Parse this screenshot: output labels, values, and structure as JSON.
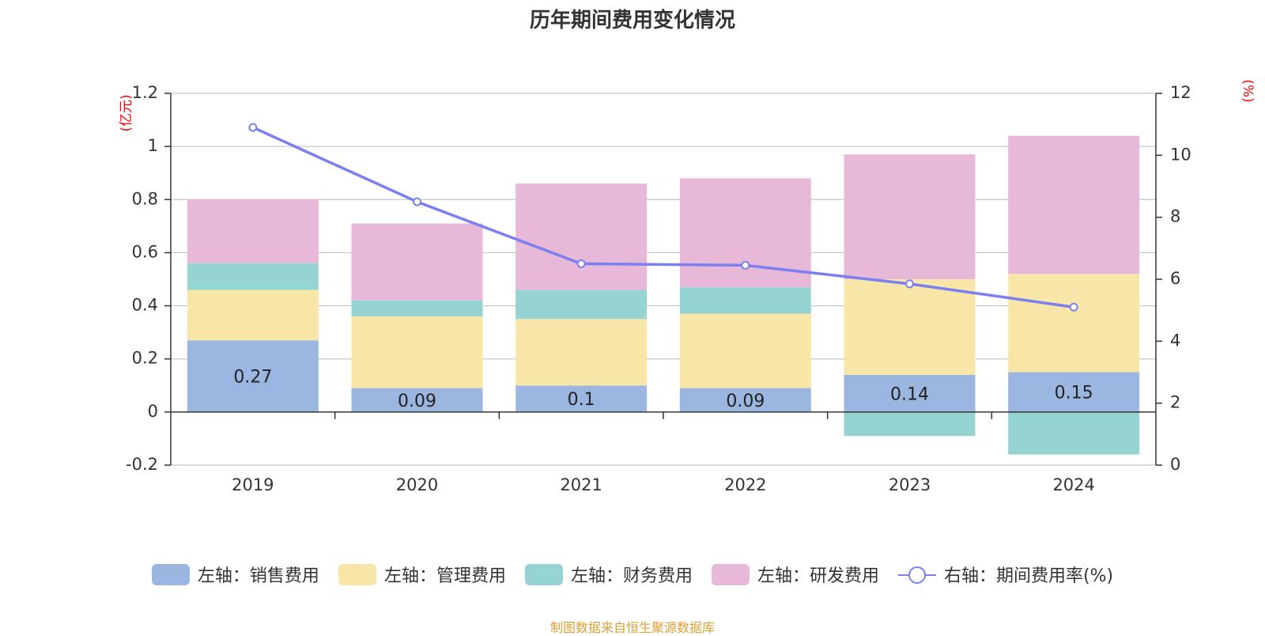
{
  "chart_data": {
    "type": "bar",
    "stacked": true,
    "title": "历年期间费用变化情况",
    "categories": [
      "2019",
      "2020",
      "2021",
      "2022",
      "2023",
      "2024"
    ],
    "left_axis": {
      "unit": "(亿元)",
      "ylim": [
        -0.2,
        1.2
      ],
      "ticks": [
        "-0.2",
        "0",
        "0.2",
        "0.4",
        "0.6",
        "0.8",
        "1",
        "1.2"
      ]
    },
    "right_axis": {
      "unit": "(%)",
      "ylim": [
        0,
        12
      ],
      "ticks": [
        "0",
        "2",
        "4",
        "6",
        "8",
        "10",
        "12"
      ]
    },
    "series": [
      {
        "name": "左轴：销售费用",
        "axis": "left",
        "type": "bar",
        "color": "#9bb6e0",
        "values": [
          0.27,
          0.09,
          0.1,
          0.09,
          0.14,
          0.15
        ],
        "labels": [
          "0.27",
          "0.09",
          "0.1",
          "0.09",
          "0.14",
          "0.15"
        ]
      },
      {
        "name": "左轴：管理费用",
        "axis": "left",
        "type": "bar",
        "color": "#f8e6a8",
        "values": [
          0.19,
          0.27,
          0.25,
          0.28,
          0.36,
          0.37
        ]
      },
      {
        "name": "左轴：财务费用",
        "axis": "left",
        "type": "bar",
        "color": "#96d4d4",
        "values": [
          0.1,
          0.06,
          0.11,
          0.1,
          -0.09,
          -0.16
        ]
      },
      {
        "name": "左轴：研发费用",
        "axis": "left",
        "type": "bar",
        "color": "#e7b8d8",
        "values": [
          0.24,
          0.29,
          0.4,
          0.41,
          0.47,
          0.52
        ]
      },
      {
        "name": "右轴：期间费用率(%)",
        "axis": "right",
        "type": "line",
        "color": "#7b7ff0",
        "values": [
          10.9,
          8.5,
          6.5,
          6.45,
          5.85,
          5.1
        ]
      }
    ],
    "grid": true,
    "legend_position": "bottom"
  },
  "source": "制图数据来自恒生聚源数据库"
}
